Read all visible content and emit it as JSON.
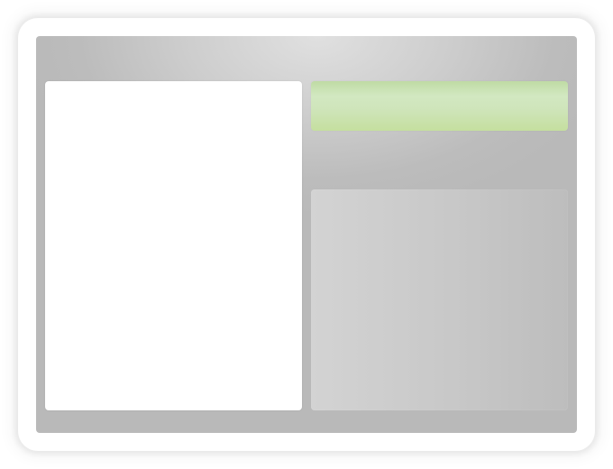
{
  "theme": {
    "frame_color": "#ffffff",
    "screen_color": "#bcbcbc",
    "left_panel_color": "#ffffff",
    "top_right_bar_color": "#cfe5bb",
    "bottom_right_panel_color": "#c8c8c8"
  }
}
